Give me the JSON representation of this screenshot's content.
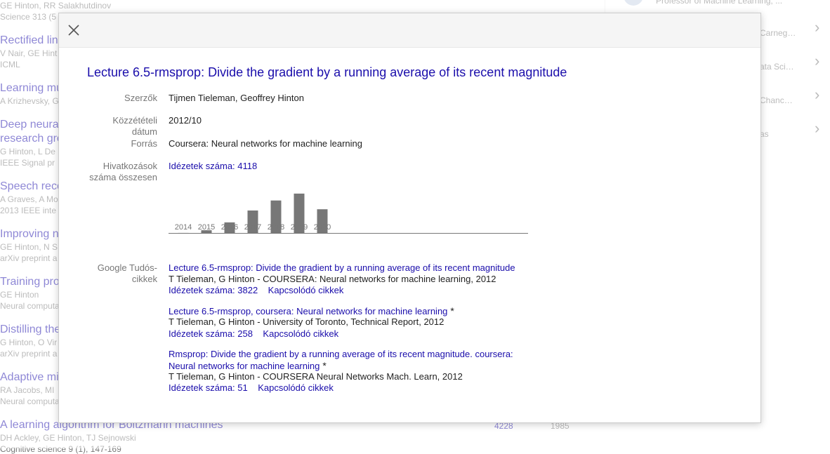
{
  "background": {
    "items": [
      {
        "title": "",
        "authors": "GE Hinton, RR Salakhutdinov",
        "source": "Science 313 (5"
      },
      {
        "title": "Rectified line",
        "authors": "V Nair, GE Hint",
        "source": "ICML"
      },
      {
        "title": "Learning mu",
        "authors": "A Krizhevsky, G",
        "source": ""
      },
      {
        "title": "Deep neural",
        "title2": "research gro",
        "authors": "G Hinton, L De",
        "source": "IEEE Signal pr"
      },
      {
        "title": "Speech reco",
        "authors": "A Graves, A Mo",
        "source": "2013 IEEE inte"
      },
      {
        "title": "Improving ne",
        "authors": "GE Hinton, N S",
        "source": "arXiv preprint a"
      },
      {
        "title": "Training prod",
        "authors": "GE Hinton",
        "source": "Neural computa"
      },
      {
        "title": "Distilling the",
        "authors": "G Hinton, O Vir",
        "source": "arXiv preprint a"
      },
      {
        "title": "Adaptive mix",
        "authors": "RA Jacobs, MI",
        "source": "Neural computa"
      },
      {
        "title": "A learning algorithm for Boltzmann machines",
        "authors": "DH Ackley, GE Hinton, TJ Sejnowski",
        "source": "Cognitive science 9 (1), 147-169",
        "citations": "4228",
        "year": "1985"
      }
    ],
    "sidebar": {
      "profile_text": "Professor of Machine Learning, ...",
      "coauthors": [
        "Carneg…",
        "ata Sci…",
        "Chanc…",
        "as"
      ]
    }
  },
  "modal": {
    "title": "Lecture 6.5-rmsprop: Divide the gradient by a running average of its recent magnitude",
    "fields": {
      "authors_label": "Szerzők",
      "authors_value": "Tijmen Tieleman, Geoffrey Hinton",
      "date_label_1": "Közzétételi",
      "date_label_2": "dátum",
      "date_value": "2012/10",
      "source_label": "Forrás",
      "source_value": "Coursera: Neural networks for machine learning",
      "citations_label_1": "Hivatkozások",
      "citations_label_2": "száma összesen",
      "citations_value": "Idézetek száma: 4118",
      "scholar_label_1": "Google Tudós-",
      "scholar_label_2": "cikkek"
    },
    "scholar_articles": [
      {
        "title": "Lecture 6.5-rmsprop: Divide the gradient by a running average of its recent magnitude",
        "meta": "T Tieleman, G Hinton - COURSERA: Neural networks for machine learning, 2012",
        "cited": "Idézetek száma: 3822",
        "related": "Kapcsolódó cikkek",
        "star": ""
      },
      {
        "title": "Lecture 6.5-rmsprop, coursera: Neural networks for machine learning",
        "meta": "T Tieleman, G Hinton - University of Toronto, Technical Report, 2012",
        "cited": "Idézetek száma: 258",
        "related": "Kapcsolódó cikkek",
        "star": "*"
      },
      {
        "title": "Rmsprop: Divide the gradient by a running average of its recent magnitude. coursera:",
        "title2": "Neural networks for machine learning",
        "meta": "T Tieleman, G Hinton - COURSERA Neural Networks Mach. Learn, 2012",
        "cited": "Idézetek száma: 51",
        "related": "Kapcsolódó cikkek",
        "star": "*"
      }
    ]
  },
  "chart_data": {
    "type": "bar",
    "categories": [
      "2014",
      "2015",
      "2016",
      "2017",
      "2018",
      "2019",
      "2020"
    ],
    "values": [
      12,
      55,
      180,
      370,
      530,
      640,
      390
    ],
    "ylim": [
      0,
      650
    ],
    "title": "",
    "xlabel": "",
    "ylabel": "",
    "grid": false,
    "bar_color": "#777777"
  }
}
